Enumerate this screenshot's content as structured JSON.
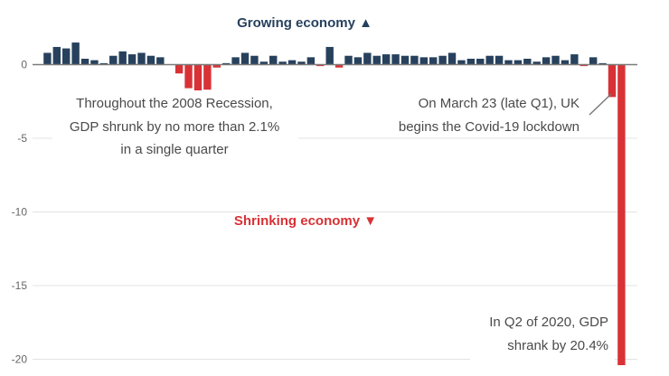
{
  "chart_data": {
    "type": "bar",
    "title": "",
    "xlabel": "",
    "ylabel": "",
    "ylim": [
      -20.4,
      2
    ],
    "yticks": [
      0,
      -5,
      -10,
      -15,
      -20
    ],
    "ytick_labels": [
      "0",
      "-5",
      "-10",
      "-15",
      "-20"
    ],
    "grid": true,
    "colors": {
      "positive": "#27415d",
      "negative": "#d83236",
      "grid": "#e3e3e3",
      "zero_line": "#7a7a7a",
      "annotation_text": "#4a4a4a"
    },
    "values": [
      0.8,
      1.2,
      1.1,
      1.5,
      0.4,
      0.3,
      0.1,
      0.6,
      0.9,
      0.7,
      0.8,
      0.6,
      0.5,
      0.0,
      -0.6,
      -1.6,
      -2.1,
      -1.7,
      -0.2,
      0.1,
      0.5,
      0.8,
      0.6,
      0.2,
      0.6,
      0.2,
      0.3,
      0.2,
      0.5,
      -0.1,
      1.2,
      -0.2,
      0.6,
      0.5,
      0.8,
      0.6,
      0.7,
      0.7,
      0.6,
      0.6,
      0.5,
      0.5,
      0.6,
      0.8,
      0.3,
      0.4,
      0.4,
      0.6,
      0.6,
      0.3,
      0.3,
      0.4,
      0.2,
      0.5,
      0.6,
      0.3,
      0.7,
      -0.1,
      0.5,
      0.1,
      -2.2,
      -20.4
    ]
  },
  "annotations": {
    "growing": "Growing economy ▲",
    "shrinking": "Shrinking economy ▼",
    "recession": [
      "Throughout the 2008 Recession,",
      "GDP shrunk by no more than 2.1%",
      "in a single quarter"
    ],
    "lockdown": [
      "On March 23 (late Q1), UK",
      "begins the Covid-19 lockdown"
    ],
    "q2_2020": [
      "In Q2 of 2020, GDP",
      "shrank by 20.4%"
    ]
  }
}
